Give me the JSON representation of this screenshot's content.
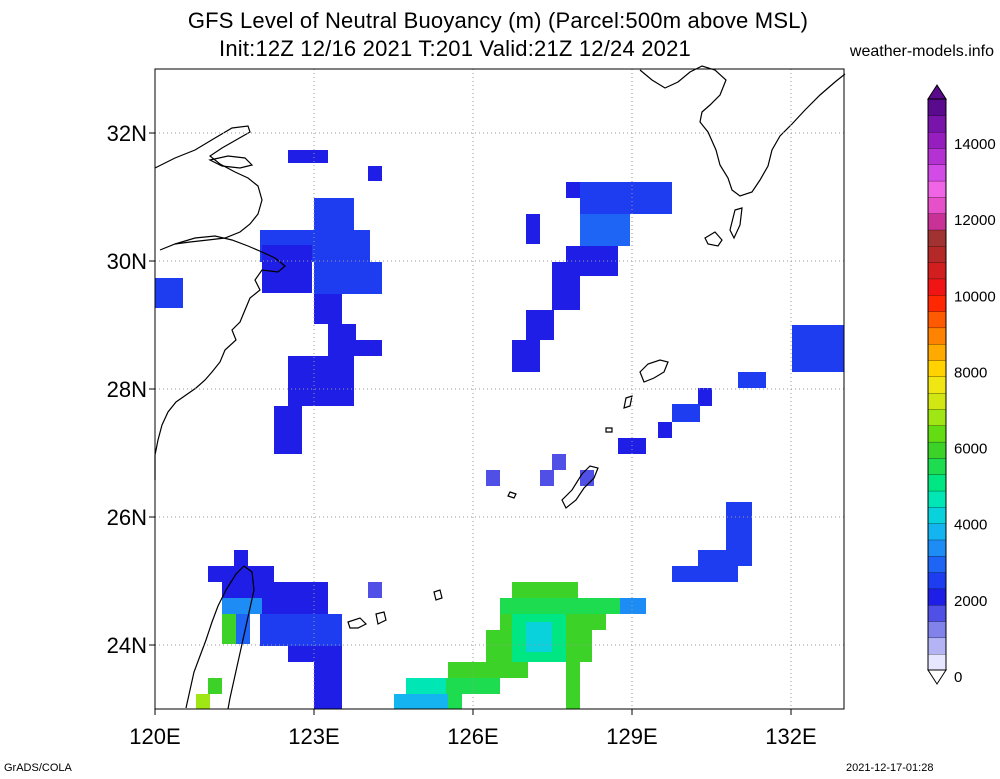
{
  "title": {
    "line1": "GFS Level of Neutral Buoyancy (m) (Parcel:500m above MSL)",
    "line2": "Init:12Z 12/16 2021 T:201 Valid:21Z 12/24 2021",
    "site": "weather-models.info"
  },
  "footer": {
    "left": "GrADS/COLA",
    "right": "2021-12-17-01:28"
  },
  "map": {
    "lon_range": [
      120,
      133
    ],
    "lat_range": [
      23,
      33
    ],
    "x_ticks": [
      {
        "lon": 120,
        "label": "120E"
      },
      {
        "lon": 123,
        "label": "123E"
      },
      {
        "lon": 126,
        "label": "126E"
      },
      {
        "lon": 129,
        "label": "129E"
      },
      {
        "lon": 132,
        "label": "132E"
      }
    ],
    "y_ticks": [
      {
        "lat": 24,
        "label": "24N"
      },
      {
        "lat": 26,
        "label": "26N"
      },
      {
        "lat": 28,
        "label": "28N"
      },
      {
        "lat": 30,
        "label": "30N"
      },
      {
        "lat": 32,
        "label": "32N"
      }
    ],
    "grid": "dotted"
  },
  "colorbar": {
    "labels": [
      {
        "value": 0,
        "label": "0"
      },
      {
        "value": 2000,
        "label": "2000"
      },
      {
        "value": 4000,
        "label": "4000"
      },
      {
        "value": 6000,
        "label": "6000"
      },
      {
        "value": 8000,
        "label": "8000"
      },
      {
        "value": 10000,
        "label": "10000"
      },
      {
        "value": 12000,
        "label": "12000"
      },
      {
        "value": 14000,
        "label": "14000"
      }
    ],
    "colors": [
      "#e6e6ff",
      "#b4b4f5",
      "#8282eb",
      "#5050e6",
      "#1e1ee6",
      "#1e3cf0",
      "#1e64f5",
      "#1e8cf5",
      "#14b4f0",
      "#0ad2dc",
      "#00e6b4",
      "#00e682",
      "#1edc50",
      "#3cd228",
      "#64dc14",
      "#a0e614",
      "#d2e614",
      "#f0e614",
      "#ffd200",
      "#ffaa00",
      "#ff8200",
      "#ff5a00",
      "#ff2800",
      "#f01414",
      "#d21e1e",
      "#b42828",
      "#a03232",
      "#c83296",
      "#e650c8",
      "#f064e6",
      "#d24be6",
      "#b432d2",
      "#961ebe",
      "#7814aa",
      "#5a0a8c"
    ]
  }
}
